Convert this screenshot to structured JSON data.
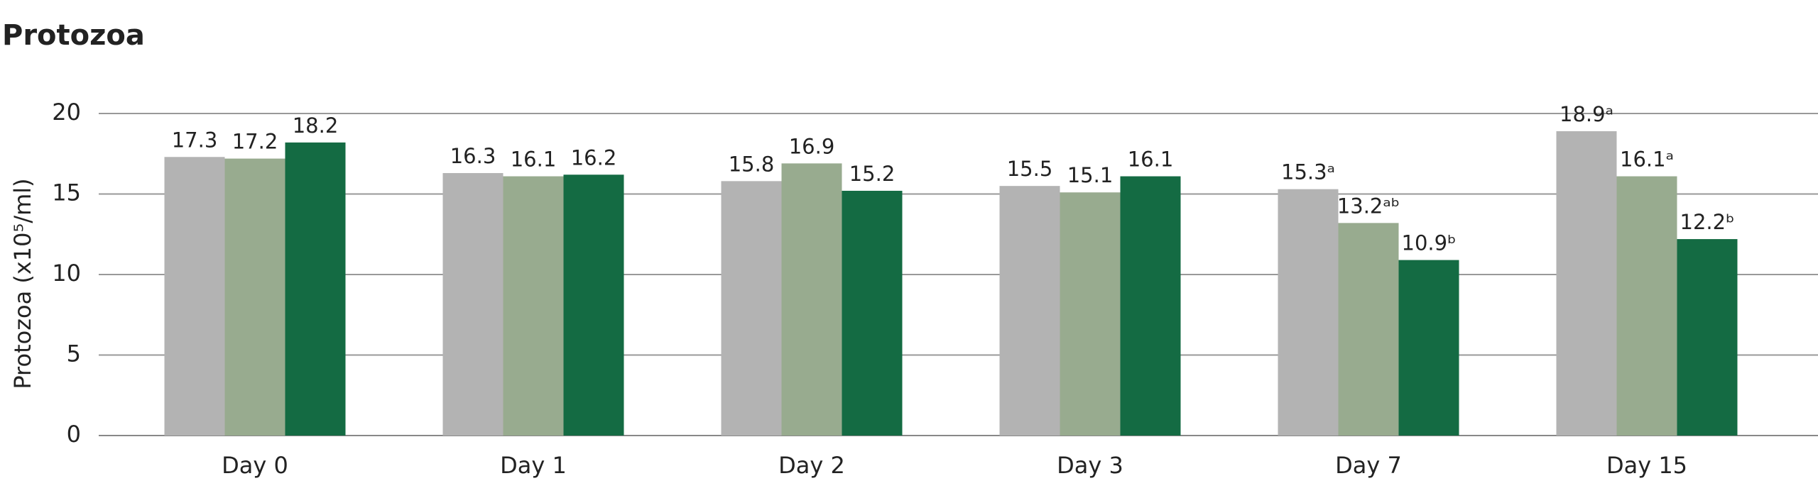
{
  "chart_data": {
    "type": "bar",
    "title": "Protozoa",
    "y_label": "Protozoa (x10⁵/ml)",
    "categories": [
      "Day 0",
      "Day 1",
      "Day 2",
      "Day 3",
      "Day 7",
      "Day 15"
    ],
    "series": [
      {
        "color": "#b3b3b3",
        "values": [
          17.3,
          16.3,
          15.8,
          15.5,
          15.3,
          18.9
        ],
        "value_labels": [
          "17.3",
          "16.3",
          "15.8",
          "15.5",
          "15.3ᵃ",
          "18.9ᵃ"
        ]
      },
      {
        "color": "#98ab8f",
        "values": [
          17.2,
          16.1,
          16.9,
          15.1,
          13.2,
          16.1
        ],
        "value_labels": [
          "17.2",
          "16.1",
          "16.9",
          "15.1",
          "13.2ᵃᵇ",
          "16.1ᵃ"
        ]
      },
      {
        "color": "#146b43",
        "values": [
          18.2,
          16.2,
          15.2,
          16.1,
          10.9,
          12.2
        ],
        "value_labels": [
          "18.2",
          "16.2",
          "15.2",
          "16.1",
          "10.9ᵇ",
          "12.2ᵇ"
        ]
      }
    ],
    "ylim": [
      0,
      20
    ],
    "yticks": [
      0,
      5,
      10,
      15,
      20
    ],
    "grid": true
  }
}
